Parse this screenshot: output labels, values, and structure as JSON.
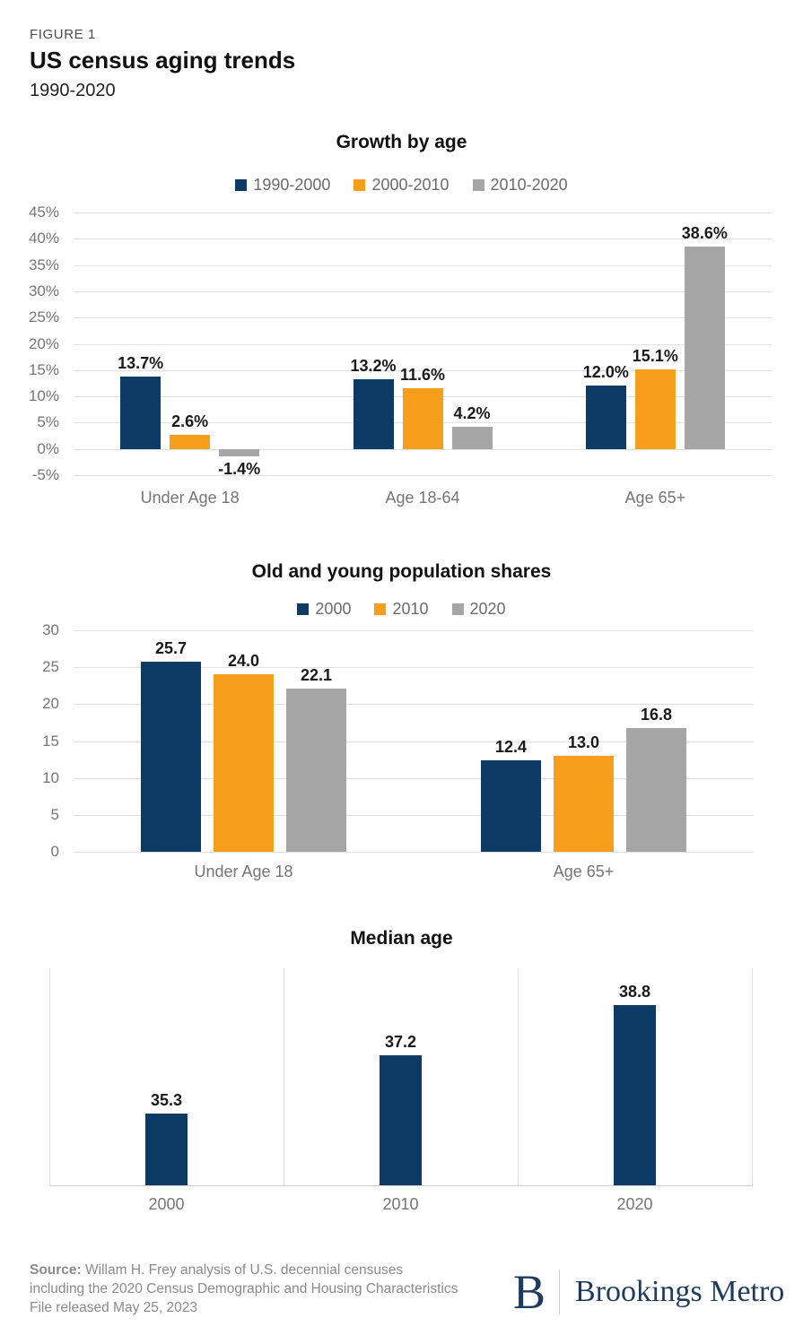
{
  "header": {
    "figure_label": "FIGURE 1",
    "title": "US census aging trends",
    "subtitle": "1990-2020"
  },
  "colors": {
    "navy": "#0d3b66",
    "orange": "#f99d1c",
    "gray": "#a6a6a6",
    "gridline": "#e0e0e0",
    "tick_text": "#757575",
    "logo_navy": "#1e3a5f"
  },
  "chart_data": [
    {
      "id": "growth-by-age",
      "type": "bar",
      "title": "Growth by age",
      "categories": [
        "Under Age 18",
        "Age 18-64",
        "Age 65+"
      ],
      "series": [
        {
          "name": "1990-2000",
          "color": "#0d3b66",
          "values": [
            13.7,
            13.2,
            12.0
          ]
        },
        {
          "name": "2000-2010",
          "color": "#f99d1c",
          "values": [
            2.6,
            11.6,
            15.1
          ]
        },
        {
          "name": "2010-2020",
          "color": "#a6a6a6",
          "values": [
            -1.4,
            4.2,
            38.6
          ]
        }
      ],
      "ylim": [
        -5,
        45
      ],
      "ytick_step": 5,
      "ytick_suffix": "%",
      "value_suffix": "%",
      "value_decimals": 1,
      "grid": true,
      "legend_position": "top"
    },
    {
      "id": "population-shares",
      "type": "bar",
      "title": "Old and young population shares",
      "categories": [
        "Under Age 18",
        "Age 65+"
      ],
      "series": [
        {
          "name": "2000",
          "color": "#0d3b66",
          "values": [
            25.7,
            12.4
          ]
        },
        {
          "name": "2010",
          "color": "#f99d1c",
          "values": [
            24.0,
            13.0
          ]
        },
        {
          "name": "2020",
          "color": "#a6a6a6",
          "values": [
            22.1,
            16.8
          ]
        }
      ],
      "ylim": [
        0,
        30
      ],
      "ytick_step": 5,
      "ytick_suffix": "",
      "value_suffix": "",
      "value_decimals": 1,
      "grid": true,
      "legend_position": "top"
    },
    {
      "id": "median-age",
      "type": "bar",
      "title": "Median age",
      "categories": [
        "2000",
        "2010",
        "2020"
      ],
      "series": [
        {
          "name": "Median age",
          "color": "#0d3b66",
          "values": [
            35.3,
            37.2,
            38.8
          ]
        }
      ],
      "ylim": [
        33,
        40
      ],
      "ytick_step": 0,
      "ytick_suffix": "",
      "value_suffix": "",
      "value_decimals": 1,
      "grid": false,
      "column_dividers": true,
      "legend_position": "none"
    }
  ],
  "footer": {
    "source_label": "Source:",
    "source_text": "Willam H. Frey analysis of U.S. decennial censuses including the 2020 Census Demographic and Housing Characteristics File released May 25, 2023",
    "logo_initial": "B",
    "logo_text": "Brookings Metro"
  }
}
